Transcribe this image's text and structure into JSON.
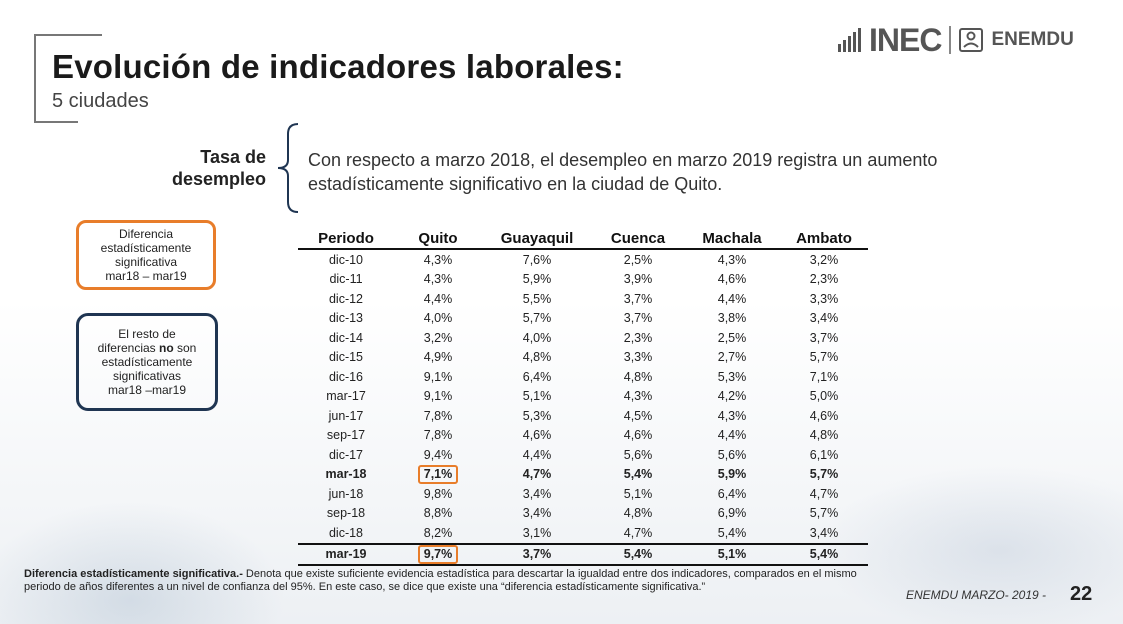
{
  "header": {
    "title": "Evolución de indicadores laborales:",
    "subtitle": "5 ciudades"
  },
  "logo": {
    "inec": "INEC",
    "enemdu": "ENEMDU"
  },
  "section": {
    "label_line1": "Tasa de",
    "label_line2": "desempleo",
    "statement": "Con respecto a marzo 2018, el desempleo en marzo 2019 registra un aumento estadísticamente significativo en la ciudad de Quito."
  },
  "legend": {
    "significant": {
      "line1": "Diferencia",
      "line2": "estadísticamente",
      "line3": "significativa",
      "line4": "mar18 – mar19"
    },
    "not_significant": {
      "line1": "El resto de",
      "line2_pre": "diferencias ",
      "line2_bold": "no",
      "line2_post": " son",
      "line3": "estadísticamente",
      "line4": "significativas",
      "line5": "mar18 –mar19"
    }
  },
  "table": {
    "headers": [
      "Periodo",
      "Quito",
      "Guayaquil",
      "Cuenca",
      "Machala",
      "Ambato"
    ],
    "rows": [
      [
        "dic-10",
        "4,3%",
        "7,6%",
        "2,5%",
        "4,3%",
        "3,2%"
      ],
      [
        "dic-11",
        "4,3%",
        "5,9%",
        "3,9%",
        "4,6%",
        "2,3%"
      ],
      [
        "dic-12",
        "4,4%",
        "5,5%",
        "3,7%",
        "4,4%",
        "3,3%"
      ],
      [
        "dic-13",
        "4,0%",
        "5,7%",
        "3,7%",
        "3,8%",
        "3,4%"
      ],
      [
        "dic-14",
        "3,2%",
        "4,0%",
        "2,3%",
        "2,5%",
        "3,7%"
      ],
      [
        "dic-15",
        "4,9%",
        "4,8%",
        "3,3%",
        "2,7%",
        "5,7%"
      ],
      [
        "dic-16",
        "9,1%",
        "6,4%",
        "4,8%",
        "5,3%",
        "7,1%"
      ],
      [
        "mar-17",
        "9,1%",
        "5,1%",
        "4,3%",
        "4,2%",
        "5,0%"
      ],
      [
        "jun-17",
        "7,8%",
        "5,3%",
        "4,5%",
        "4,3%",
        "4,6%"
      ],
      [
        "sep-17",
        "7,8%",
        "4,6%",
        "4,6%",
        "4,4%",
        "4,8%"
      ],
      [
        "dic-17",
        "9,4%",
        "4,4%",
        "5,6%",
        "5,6%",
        "6,1%"
      ],
      [
        "mar-18",
        "7,1%",
        "4,7%",
        "5,4%",
        "5,9%",
        "5,7%"
      ],
      [
        "jun-18",
        "9,8%",
        "3,4%",
        "5,1%",
        "6,4%",
        "4,7%"
      ],
      [
        "sep-18",
        "8,8%",
        "3,4%",
        "4,8%",
        "6,9%",
        "5,7%"
      ],
      [
        "dic-18",
        "8,2%",
        "3,1%",
        "4,7%",
        "5,4%",
        "3,4%"
      ],
      [
        "mar-19",
        "9,7%",
        "3,7%",
        "5,4%",
        "5,1%",
        "5,4%"
      ]
    ]
  },
  "footnote": {
    "bold": "Diferencia estadísticamente significativa.-",
    "text": " Denota que existe suficiente evidencia estadística para descartar la igualdad entre dos indicadores, comparados en el mismo periodo de años diferentes a un nivel de confianza del 95%. En este caso, se dice que existe una “diferencia estadísticamente significativa.”"
  },
  "footer": {
    "source": "ENEMDU MARZO- 2019 -",
    "page": "22"
  },
  "colors": {
    "highlight": "#e87d2a",
    "navy": "#1f3552"
  }
}
